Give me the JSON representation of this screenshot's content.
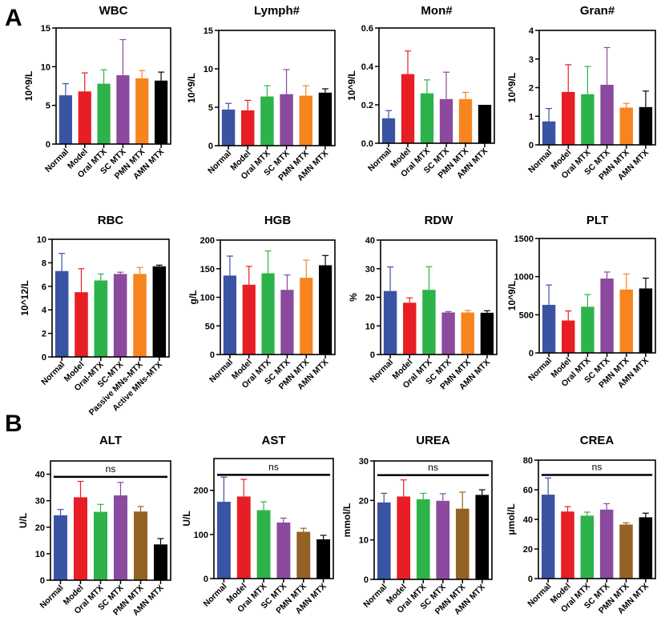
{
  "figure": {
    "panel_labels": [
      "A",
      "B"
    ]
  },
  "colors": {
    "Normal": "#3a54a4",
    "Model": "#e81e25",
    "Oral": "#2eb24a",
    "SC": "#8b4a9e",
    "PMN_A": "#f7851f",
    "PMN_B": "#946224",
    "AMN": "#000000"
  },
  "chart_data": [
    {
      "type": "bar",
      "panel": "A",
      "title": "WBC",
      "ylabel": "10^9/L",
      "categories": [
        "Normal",
        "Model",
        "Oral MTX",
        "SC MTX",
        "PMN MTX",
        "AMN MTX"
      ],
      "values": [
        6.3,
        6.8,
        7.8,
        8.9,
        8.5,
        8.2
      ],
      "error": [
        1.5,
        2.4,
        1.8,
        4.6,
        1.0,
        1.1
      ],
      "ylim": [
        0,
        15
      ],
      "yticks": [
        "0",
        "5",
        "10",
        "15"
      ],
      "ytick_values": [
        0,
        5,
        10,
        15
      ],
      "colors": [
        "#3a54a4",
        "#e81e25",
        "#2eb24a",
        "#8b4a9e",
        "#f7851f",
        "#000000"
      ]
    },
    {
      "type": "bar",
      "panel": "A",
      "title": "Lymph#",
      "ylabel": "10^9/L",
      "categories": [
        "Normal",
        "Model",
        "Oral MTX",
        "SC MTX",
        "PMN MTX",
        "AMN MTX"
      ],
      "values": [
        4.7,
        4.6,
        6.4,
        6.7,
        6.5,
        6.9
      ],
      "error": [
        0.8,
        1.3,
        1.4,
        3.2,
        1.3,
        0.5
      ],
      "ylim": [
        0,
        15
      ],
      "yticks": [
        "0",
        "5",
        "10",
        "15"
      ],
      "ytick_values": [
        0,
        5,
        10,
        15
      ],
      "colors": [
        "#3a54a4",
        "#e81e25",
        "#2eb24a",
        "#8b4a9e",
        "#f7851f",
        "#000000"
      ]
    },
    {
      "type": "bar",
      "panel": "A",
      "title": "Mon#",
      "ylabel": "10^9/L",
      "categories": [
        "Normal",
        "Model",
        "Oral MTX",
        "SC MTX",
        "PMN MTX",
        "AMN MTX"
      ],
      "values": [
        0.13,
        0.36,
        0.26,
        0.23,
        0.23,
        0.2
      ],
      "error": [
        0.04,
        0.12,
        0.07,
        0.14,
        0.035,
        0
      ],
      "ylim": [
        0,
        0.6
      ],
      "yticks": [
        "0.0",
        "0.2",
        "0.4",
        "0.6"
      ],
      "ytick_values": [
        0,
        0.2,
        0.4,
        0.6
      ],
      "colors": [
        "#3a54a4",
        "#e81e25",
        "#2eb24a",
        "#8b4a9e",
        "#f7851f",
        "#000000"
      ]
    },
    {
      "type": "bar",
      "panel": "A",
      "title": "Gran#",
      "ylabel": "10^9/L",
      "categories": [
        "Normal",
        "Model",
        "Oral MTX",
        "SC MTX",
        "PMN MTX",
        "AMN MTX"
      ],
      "values": [
        0.82,
        1.85,
        1.77,
        2.1,
        1.3,
        1.32
      ],
      "error": [
        0.45,
        0.95,
        0.97,
        1.3,
        0.15,
        0.56
      ],
      "ylim": [
        0,
        4
      ],
      "yticks": [
        "0",
        "1",
        "2",
        "3",
        "4"
      ],
      "ytick_values": [
        0,
        1,
        2,
        3,
        4
      ],
      "colors": [
        "#3a54a4",
        "#e81e25",
        "#2eb24a",
        "#8b4a9e",
        "#f7851f",
        "#000000"
      ]
    },
    {
      "type": "bar",
      "panel": "A",
      "title": "RBC",
      "ylabel": "10^12/L",
      "categories": [
        "Normal",
        "Model",
        "Oral-MTX",
        "SC-MTX",
        "Passive MNs-MTX",
        "Active MNs-MTX"
      ],
      "values": [
        7.3,
        5.5,
        6.5,
        7.05,
        7.05,
        7.7
      ],
      "error": [
        1.5,
        2.0,
        0.55,
        0.15,
        0.55,
        0.1
      ],
      "ylim": [
        0,
        10
      ],
      "yticks": [
        "0",
        "2",
        "4",
        "6",
        "8",
        "10"
      ],
      "ytick_values": [
        0,
        2,
        4,
        6,
        8,
        10
      ],
      "colors": [
        "#3a54a4",
        "#e81e25",
        "#2eb24a",
        "#8b4a9e",
        "#f7851f",
        "#000000"
      ]
    },
    {
      "type": "bar",
      "panel": "A",
      "title": "HGB",
      "ylabel": "g/L",
      "categories": [
        "Normal",
        "Model",
        "Oral MTX",
        "SC MTX",
        "PMN MTX",
        "AMN MTX"
      ],
      "values": [
        138,
        122,
        142,
        113,
        134,
        156
      ],
      "error": [
        34,
        32,
        39,
        26,
        31,
        17
      ],
      "ylim": [
        0,
        200
      ],
      "yticks": [
        "0",
        "50",
        "100",
        "150",
        "200"
      ],
      "ytick_values": [
        0,
        50,
        100,
        150,
        200
      ],
      "colors": [
        "#3a54a4",
        "#e81e25",
        "#2eb24a",
        "#8b4a9e",
        "#f7851f",
        "#000000"
      ]
    },
    {
      "type": "bar",
      "panel": "A",
      "title": "RDW",
      "ylabel": "%",
      "categories": [
        "Normal",
        "Model",
        "Oral MTX",
        "SC MTX",
        "PMN MTX",
        "AMN MTX"
      ],
      "values": [
        22.2,
        18.1,
        22.6,
        14.7,
        14.7,
        14.6
      ],
      "error": [
        8.4,
        1.7,
        8.1,
        0.3,
        0.7,
        0.7
      ],
      "ylim": [
        0,
        40
      ],
      "yticks": [
        "0",
        "10",
        "20",
        "30",
        "40"
      ],
      "ytick_values": [
        0,
        10,
        20,
        30,
        40
      ],
      "colors": [
        "#3a54a4",
        "#e81e25",
        "#2eb24a",
        "#8b4a9e",
        "#f7851f",
        "#000000"
      ]
    },
    {
      "type": "bar",
      "panel": "A",
      "title": "PLT",
      "ylabel": "10^9/L",
      "categories": [
        "Normal",
        "Model",
        "Oral MTX",
        "SC MTX",
        "PMN MTX",
        "AMN MTX"
      ],
      "values": [
        630,
        425,
        605,
        975,
        830,
        845
      ],
      "error": [
        260,
        125,
        160,
        85,
        205,
        135
      ],
      "ylim": [
        0,
        1500
      ],
      "yticks": [
        "0",
        "500",
        "1000",
        "1500"
      ],
      "ytick_values": [
        0,
        500,
        1000,
        1500
      ],
      "colors": [
        "#3a54a4",
        "#e81e25",
        "#2eb24a",
        "#8b4a9e",
        "#f7851f",
        "#000000"
      ]
    },
    {
      "type": "bar",
      "panel": "B",
      "title": "ALT",
      "ylabel": "U/L",
      "categories": [
        "Normal",
        "Model",
        "Oral MTX",
        "SC MTX",
        "PMN MTX",
        "AMN MTX"
      ],
      "values": [
        24.5,
        31.3,
        25.8,
        32,
        25.9,
        13.5
      ],
      "error": [
        2.2,
        6.0,
        2.8,
        4.9,
        1.9,
        2.2
      ],
      "ylim": [
        0,
        45
      ],
      "yticks": [
        "0",
        "10",
        "20",
        "30",
        "40"
      ],
      "ytick_values": [
        0,
        10,
        20,
        30,
        40
      ],
      "annotation": "ns",
      "annotation_y": 39,
      "colors": [
        "#3a54a4",
        "#e81e25",
        "#2eb24a",
        "#8b4a9e",
        "#946224",
        "#000000"
      ]
    },
    {
      "type": "bar",
      "panel": "B",
      "title": "AST",
      "ylabel": "U/L",
      "categories": [
        "Normal",
        "Model",
        "Oral MTX",
        "SC MTX",
        "PMN MTX",
        "AMN MTX"
      ],
      "values": [
        174,
        186,
        155,
        127,
        106,
        89
      ],
      "error": [
        56,
        39,
        19,
        10,
        8,
        9
      ],
      "ylim": [
        0,
        272
      ],
      "yticks": [
        "0",
        "100",
        "200"
      ],
      "ytick_values": [
        0,
        100,
        200
      ],
      "annotation": "ns",
      "annotation_y": 235,
      "colors": [
        "#3a54a4",
        "#e81e25",
        "#2eb24a",
        "#8b4a9e",
        "#946224",
        "#000000"
      ]
    },
    {
      "type": "bar",
      "panel": "B",
      "title": "UREA",
      "ylabel": "mmol/L",
      "categories": [
        "Normal",
        "Model",
        "Oral MTX",
        "SC MTX",
        "PMN MTX",
        "AMN MTX"
      ],
      "values": [
        19.5,
        21,
        20.3,
        19.9,
        17.9,
        21.4
      ],
      "error": [
        2.3,
        4.2,
        1.5,
        1.8,
        4.2,
        1.3
      ],
      "ylim": [
        0,
        30
      ],
      "yticks": [
        "0",
        "10",
        "20",
        "30"
      ],
      "ytick_values": [
        0,
        10,
        20,
        30
      ],
      "annotation": "ns",
      "annotation_y": 26.4,
      "colors": [
        "#3a54a4",
        "#e81e25",
        "#2eb24a",
        "#8b4a9e",
        "#946224",
        "#000000"
      ]
    },
    {
      "type": "bar",
      "panel": "B",
      "title": "CREA",
      "ylabel": "μmol/L",
      "categories": [
        "Normal",
        "Model",
        "Oral MTX",
        "SC MTX",
        "PMN MTX",
        "AMN MTX"
      ],
      "values": [
        56.7,
        45.3,
        42.5,
        46.6,
        36.5,
        41.4
      ],
      "error": [
        11.3,
        3.3,
        2.4,
        4.0,
        1.2,
        2.8
      ],
      "ylim": [
        0,
        80
      ],
      "yticks": [
        "0",
        "20",
        "40",
        "60",
        "80"
      ],
      "ytick_values": [
        0,
        20,
        40,
        60,
        80
      ],
      "annotation": "ns",
      "annotation_y": 70,
      "colors": [
        "#3a54a4",
        "#e81e25",
        "#2eb24a",
        "#8b4a9e",
        "#946224",
        "#000000"
      ]
    }
  ]
}
